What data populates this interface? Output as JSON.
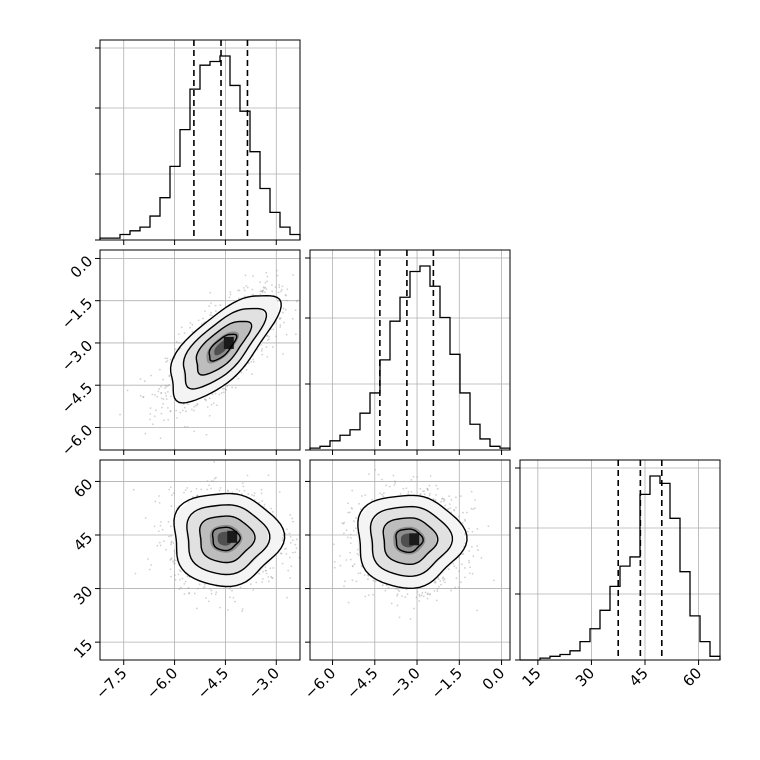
{
  "chart_data": {
    "type": "corner",
    "grid": true,
    "parameters": [
      {
        "id": "p0",
        "range": [
          -8.2,
          -2.3
        ],
        "ticks": [
          -7.5,
          -6.0,
          -4.5,
          -3.0
        ],
        "tick_labels": [
          "−7.5",
          "−6.0",
          "−4.5",
          "−3.0"
        ],
        "quantiles": [
          -5.43,
          -4.63,
          -3.85
        ],
        "hist_edges_start": -8.2,
        "hist_bin_width": 0.295,
        "hist_counts": [
          1,
          1,
          3,
          5,
          7,
          13,
          23,
          40,
          60,
          82,
          95,
          97,
          100,
          84,
          70,
          48,
          28,
          15,
          7,
          3
        ]
      },
      {
        "id": "p1",
        "range": [
          -6.8,
          0.3
        ],
        "ticks": [
          -6.0,
          -4.5,
          -3.0,
          -1.5,
          0.0
        ],
        "tick_labels": [
          "−6.0",
          "−4.5",
          "−3.0",
          "−1.5",
          "0.0"
        ],
        "quantiles": [
          -4.32,
          -3.36,
          -2.42
        ],
        "hist_edges_start": -6.8,
        "hist_bin_width": 0.355,
        "hist_counts": [
          1,
          2,
          5,
          8,
          11,
          20,
          31,
          49,
          70,
          83,
          97,
          100,
          89,
          72,
          52,
          31,
          14,
          6,
          2,
          1
        ]
      },
      {
        "id": "p2",
        "range": [
          10,
          66
        ],
        "ticks": [
          15,
          30,
          45,
          60
        ],
        "tick_labels": [
          "15",
          "30",
          "45",
          "60"
        ],
        "quantiles": [
          37.5,
          43.7,
          49.7
        ],
        "hist_edges_start": 10,
        "hist_bin_width": 2.8,
        "hist_counts": [
          0,
          0,
          1,
          2,
          3,
          5,
          10,
          17,
          27,
          40,
          51,
          56,
          90,
          100,
          96,
          77,
          48,
          24,
          10,
          2
        ]
      }
    ],
    "correlations": [
      {
        "row": 1,
        "col": 0,
        "center": [
          -4.6,
          -3.15
        ],
        "sd": [
          0.8,
          0.95
        ],
        "rho": 0.7,
        "contour_levels": [
          0.5,
          1.0,
          1.5,
          2.0
        ],
        "peak": [
          -4.4,
          -3.0
        ]
      },
      {
        "row": 2,
        "col": 0,
        "center": [
          -4.5,
          44
        ],
        "sd": [
          0.8,
          6.5
        ],
        "rho": 0.0,
        "contour_levels": [
          0.5,
          1.0,
          1.5,
          2.0
        ],
        "peak": [
          -4.3,
          44.5
        ]
      },
      {
        "row": 2,
        "col": 1,
        "center": [
          -3.3,
          43.5
        ],
        "sd": [
          0.95,
          6.5
        ],
        "rho": 0.0,
        "contour_levels": [
          0.5,
          1.0,
          1.5,
          2.0
        ],
        "peak": [
          -3.1,
          43.8
        ]
      }
    ],
    "density_shading": "grayscale 2D histogram inside contours",
    "scatter_color": "#9a9a9a",
    "line_color": "#000000"
  }
}
